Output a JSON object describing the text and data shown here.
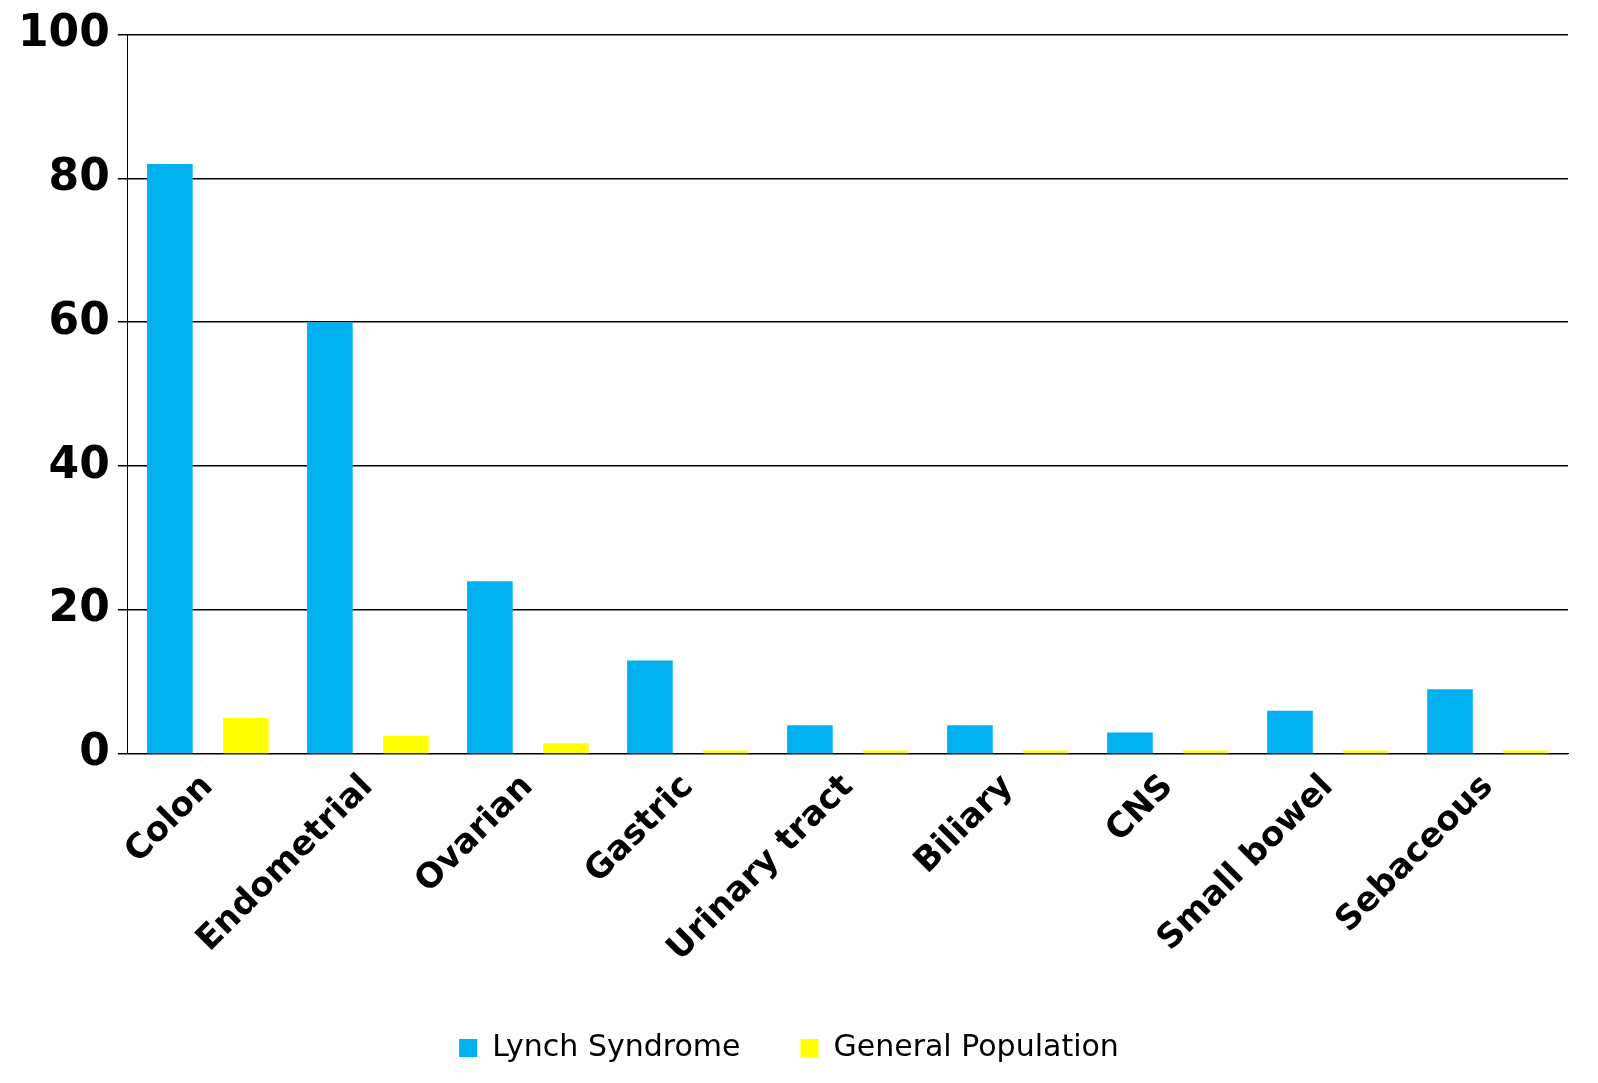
{
  "chart_data": {
    "type": "bar",
    "categories": [
      "Colon",
      "Endometrial",
      "Ovarian",
      "Gastric",
      "Urinary tract",
      "Biliary",
      "CNS",
      "Small bowel",
      "Sebaceous"
    ],
    "series": [
      {
        "name": "Lynch Syndrome",
        "color": "#00b0f0",
        "values": [
          82,
          60,
          24,
          13,
          4,
          4,
          3,
          6,
          9
        ]
      },
      {
        "name": "General Population",
        "color": "#ffff00",
        "values": [
          5,
          2.5,
          1.5,
          0.5,
          0.5,
          0.5,
          0.5,
          0.5,
          0.5
        ]
      }
    ],
    "ylim": [
      0,
      100
    ],
    "yticks": [
      0,
      20,
      40,
      60,
      80,
      100
    ],
    "grid": "y",
    "legend": "bottom"
  }
}
